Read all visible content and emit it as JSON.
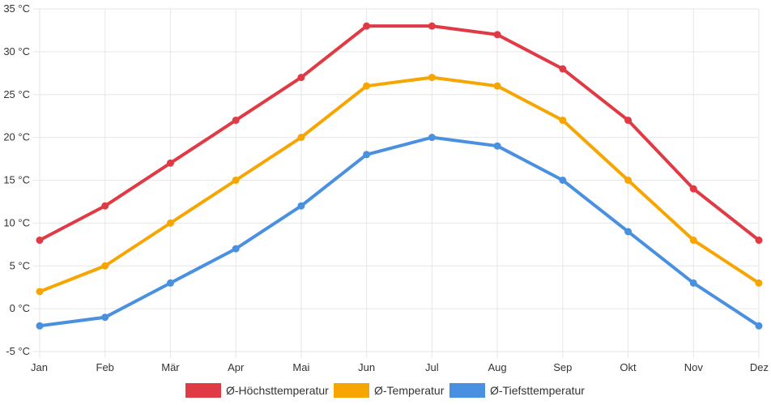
{
  "chart_data": {
    "type": "line",
    "categories": [
      "Jan",
      "Feb",
      "Mär",
      "Apr",
      "Mai",
      "Jun",
      "Jul",
      "Aug",
      "Sep",
      "Okt",
      "Nov",
      "Dez"
    ],
    "series": [
      {
        "name": "Ø-Höchsttemperatur",
        "color": "#e03a45",
        "values": [
          8,
          12,
          17,
          22,
          27,
          33,
          33,
          32,
          28,
          22,
          14,
          8
        ]
      },
      {
        "name": "Ø-Temperatur",
        "color": "#f7a500",
        "values": [
          2,
          5,
          10,
          15,
          20,
          26,
          27,
          26,
          22,
          15,
          8,
          3
        ]
      },
      {
        "name": "Ø-Tiefsttemperatur",
        "color": "#4a90e0",
        "values": [
          -2,
          -1,
          3,
          7,
          12,
          18,
          20,
          19,
          15,
          9,
          3,
          -2
        ]
      }
    ],
    "y_ticks": [
      "35 °C",
      "30 °C",
      "25 °C",
      "20 °C",
      "15 °C",
      "10 °C",
      "5 °C",
      "0 °C",
      "-5 °C"
    ],
    "ylim": [
      -5,
      35
    ],
    "y_step": 5,
    "grid": true,
    "legend_position": "bottom-center",
    "title": "",
    "xlabel": "",
    "ylabel": ""
  }
}
